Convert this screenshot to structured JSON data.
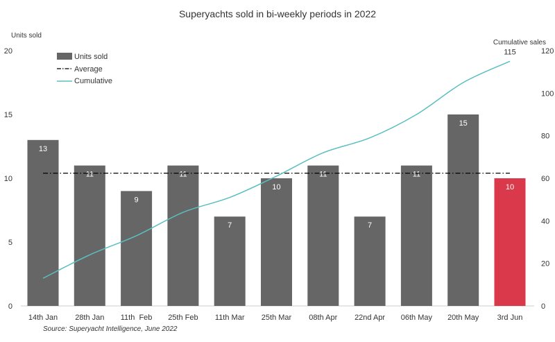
{
  "chart_data": {
    "type": "bar",
    "title": "Superyachts sold in bi-weekly periods in 2022",
    "ylabel": "Units sold",
    "y2label": "Cumulative sales",
    "ylim": [
      0,
      20
    ],
    "y2lim": [
      0,
      120
    ],
    "yticks": [
      0,
      5,
      10,
      15,
      20
    ],
    "y2ticks": [
      0,
      20,
      40,
      60,
      80,
      100,
      120
    ],
    "categories": [
      "14th Jan",
      "28th Jan",
      "11th  Feb",
      "25th Feb",
      "11th Mar",
      "25th Mar",
      "08th Apr",
      "22nd Apr",
      "06th May",
      "20th May",
      "3rd Jun"
    ],
    "series": [
      {
        "name": "Units sold",
        "kind": "bar",
        "values": [
          13,
          11,
          9,
          11,
          7,
          10,
          11,
          7,
          11,
          15,
          10
        ],
        "labels": [
          "13",
          "11",
          "9",
          "11",
          "7",
          "10",
          "11",
          "7",
          "11",
          "15",
          "10"
        ],
        "color": "#666666",
        "highlight_color": "#d9394a",
        "highlight_index": 10
      },
      {
        "name": "Average",
        "kind": "hline",
        "value": 10.4,
        "color": "#000000"
      },
      {
        "name": "Cumulative",
        "kind": "line",
        "axis": "right",
        "values": [
          13,
          24,
          33,
          44,
          51,
          61,
          72,
          79,
          90,
          105,
          115
        ],
        "end_label": "115",
        "color": "#5bbfbf"
      }
    ],
    "legend": "top-left",
    "grid": false
  },
  "source": "Source: Superyacht Intelligence, June 2022"
}
